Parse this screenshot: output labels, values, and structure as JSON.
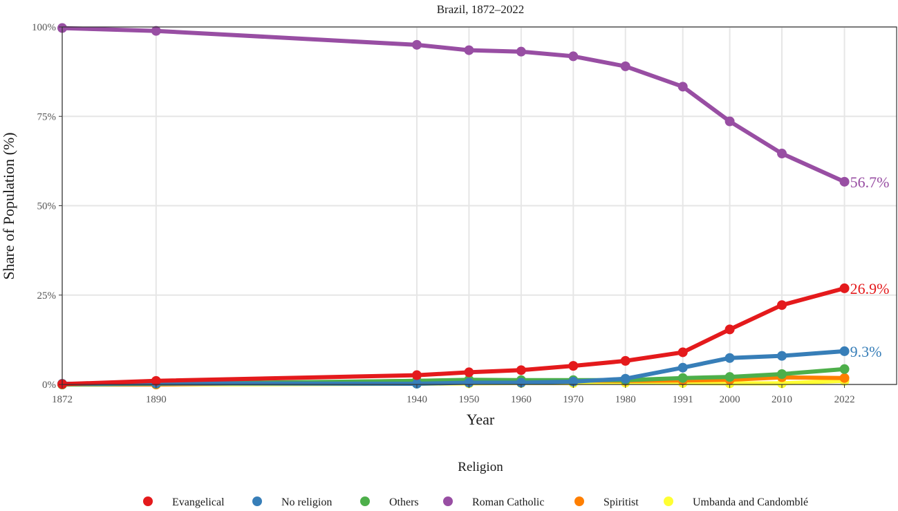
{
  "chart_data": {
    "type": "line",
    "title": "Brazil, 1872–2022",
    "xlabel": "Year",
    "ylabel": "Share of Population (%)",
    "x": [
      1872,
      1890,
      1940,
      1950,
      1960,
      1970,
      1980,
      1991,
      2000,
      2010,
      2022
    ],
    "x_tick_labels": [
      "1872",
      "1890",
      "1940",
      "1950",
      "1960",
      "1970",
      "1980",
      "1991",
      "2000",
      "2010",
      "2022"
    ],
    "xlim": [
      1872,
      2032
    ],
    "ylim": [
      0,
      100
    ],
    "y_ticks": [
      0,
      25,
      50,
      75,
      100
    ],
    "y_tick_labels": [
      "0%",
      "25%",
      "50%",
      "75%",
      "100%"
    ],
    "grid": true,
    "legend": {
      "title": "Religion",
      "position": "bottom"
    },
    "series": [
      {
        "name": "Evangelical",
        "color": "#e41a1c",
        "values": [
          0.1,
          1.0,
          2.6,
          3.4,
          4.0,
          5.2,
          6.6,
          9.0,
          15.4,
          22.2,
          26.9
        ],
        "end_label": "26.9%"
      },
      {
        "name": "No religion",
        "color": "#377eb8",
        "values": [
          0.2,
          0.3,
          0.2,
          0.5,
          0.5,
          0.8,
          1.6,
          4.7,
          7.4,
          8.0,
          9.3
        ],
        "end_label": "9.3%"
      },
      {
        "name": "Others",
        "color": "#4daf4a",
        "values": [
          0.0,
          0.2,
          1.0,
          1.3,
          1.2,
          1.2,
          1.2,
          1.8,
          2.1,
          2.9,
          4.3
        ],
        "end_label": null
      },
      {
        "name": "Roman Catholic",
        "color": "#984ea3",
        "values": [
          99.7,
          98.9,
          95.0,
          93.5,
          93.1,
          91.8,
          89.0,
          83.3,
          73.6,
          64.6,
          56.7
        ],
        "end_label": "56.7%"
      },
      {
        "name": "Spiritist",
        "color": "#ff7f00",
        "values": [
          0.0,
          0.0,
          1.0,
          1.2,
          1.0,
          1.1,
          1.0,
          1.1,
          1.3,
          2.0,
          1.8
        ],
        "end_label": null
      },
      {
        "name": "Umbanda and Candomblé",
        "color": "#ffff33",
        "values": [
          0.0,
          0.0,
          0.2,
          0.3,
          0.4,
          0.4,
          0.5,
          0.4,
          0.3,
          0.3,
          1.0
        ],
        "end_label": null
      }
    ]
  }
}
